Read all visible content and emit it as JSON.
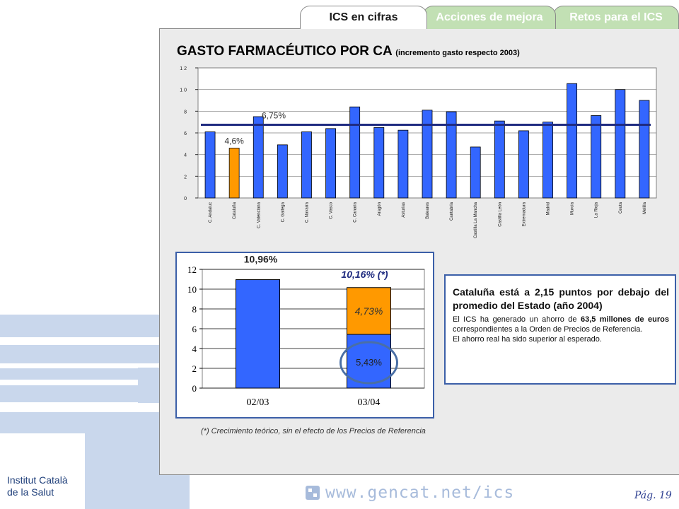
{
  "tabs": [
    {
      "label": "ICS en cifras",
      "active": true
    },
    {
      "label": "Acciones de mejora",
      "active": false
    },
    {
      "label": "Retos para el ICS",
      "active": false
    }
  ],
  "page": {
    "title": "GASTO FARMACÉUTICO POR CA",
    "subtitle": "(incremento gasto respecto 2003)",
    "footnote": "(*) Crecimiento teórico, sin el efecto de los Precios de Referencia",
    "org_line1": "Institut Català",
    "org_line2": "de la Salut",
    "website": "www.gencat.net/ics",
    "page_number": "Pág. 19"
  },
  "info": {
    "headline": "Cataluña está a 2,15 puntos por debajo del promedio del Estado (año 2004)",
    "body_pre": "El ICS ha generado un ahorro de ",
    "body_bold": "63,5 millones de euros",
    "body_post": " correspondientes a la Orden de Precios de Referencia.",
    "body_line2": "El ahorro real ha sido superior al esperado."
  },
  "colors": {
    "bar_blue": "#3366ff",
    "highlight_orange": "#ff9900",
    "avg_line": "#1f2b80",
    "panel": "#ebebeb",
    "tab_active": "#ffffff",
    "tab_inactive": "#c2e0b4",
    "tab_inactive_text": "#ffffff"
  },
  "chart_data": [
    {
      "type": "bar",
      "categories": [
        "C. Andaluc",
        "Cataluña",
        "C. Valenciana",
        "C. Gallega",
        "C. Navarra",
        "C. Vasco",
        "C. Canaria",
        "Aragón",
        "Asturias",
        "Baleares",
        "Cantabria",
        "Castilla La Mancha",
        "Castilla León",
        "Extremadura",
        "Madrid",
        "Murcia",
        "La Rioja",
        "Ceuta",
        "Melilla"
      ],
      "values": [
        6.1,
        4.6,
        7.5,
        4.9,
        6.1,
        6.4,
        8.4,
        6.5,
        6.25,
        8.1,
        7.95,
        4.7,
        7.1,
        6.2,
        7.0,
        10.55,
        7.6,
        10.0,
        9.0
      ],
      "highlight_index": 1,
      "average": 6.75,
      "labels": {
        "average": "6,75%",
        "highlight": "4,6%"
      },
      "ylim": [
        0,
        12
      ],
      "yticks": [
        0,
        2,
        4,
        6,
        8,
        10,
        12
      ],
      "ytick_labels": [
        "0",
        "2",
        "4",
        "6",
        "8",
        "1 0",
        "1 2"
      ],
      "grid": true
    },
    {
      "type": "bar",
      "stacked": true,
      "categories": [
        "02/03",
        "03/04"
      ],
      "series": [
        {
          "values": [
            10.96,
            5.43
          ]
        },
        {
          "values": [
            0,
            4.73
          ]
        }
      ],
      "totals": [
        10.96,
        10.16
      ],
      "labels": {
        "bar1_total": "10,96%",
        "bar2_total": "10,16% (*)",
        "bar2_bottom": "5,43%",
        "bar2_top": "4,73%"
      },
      "ylim": [
        0,
        12
      ],
      "yticks": [
        0,
        2,
        4,
        6,
        8,
        10,
        12
      ],
      "grid": true
    }
  ]
}
